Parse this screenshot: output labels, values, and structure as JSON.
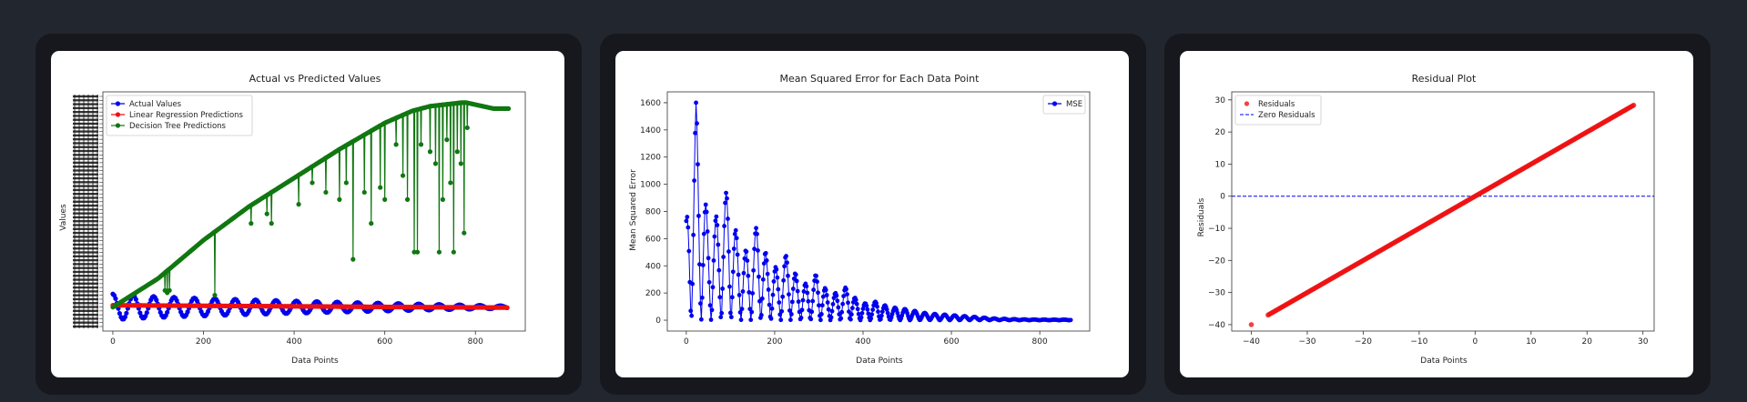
{
  "colors": {
    "page_bg": "#22262e",
    "card_bg": "#16181d",
    "plot_bg": "#ffffff",
    "blue": "#0000ee",
    "red": "#ee1111",
    "green": "#117711"
  },
  "chart_data": [
    {
      "type": "line",
      "title": "Actual vs Predicted Values",
      "xlabel": "Data Points",
      "ylabel": "Values",
      "xlim": [
        -22,
        910
      ],
      "ylim": [
        0,
        1
      ],
      "x_ticks": [
        0,
        200,
        400,
        600,
        800
      ],
      "grid": false,
      "legend_position": "top-left",
      "series": [
        {
          "name": "Actual Values",
          "color": "#0000ee",
          "marker": "o",
          "x_max": 870,
          "model": "damped_sine",
          "base": 0.1,
          "amplitude": 0.055,
          "period": 45,
          "decay_to": 0.1
        },
        {
          "name": "Linear Regression Predictions",
          "color": "#ee1111",
          "marker": "o",
          "x_max": 870,
          "model": "flat",
          "y_start": 0.108,
          "y_end": 0.098
        },
        {
          "name": "Decision Tree Predictions",
          "color": "#117711",
          "marker": "o",
          "model": "ramp",
          "trend": [
            {
              "x": 0,
              "y": 0.1
            },
            {
              "x": 100,
              "y": 0.22
            },
            {
              "x": 200,
              "y": 0.38
            },
            {
              "x": 300,
              "y": 0.52
            },
            {
              "x": 400,
              "y": 0.64
            },
            {
              "x": 500,
              "y": 0.76
            },
            {
              "x": 600,
              "y": 0.87
            },
            {
              "x": 660,
              "y": 0.92
            },
            {
              "x": 700,
              "y": 0.94
            },
            {
              "x": 770,
              "y": 0.955
            },
            {
              "x": 780,
              "y": 0.955
            },
            {
              "x": 840,
              "y": 0.93
            },
            {
              "x": 875,
              "y": 0.93
            }
          ],
          "drops": [
            {
              "x": 115,
              "y": 0.17
            },
            {
              "x": 120,
              "y": 0.16
            },
            {
              "x": 125,
              "y": 0.17
            },
            {
              "x": 225,
              "y": 0.15
            },
            {
              "x": 305,
              "y": 0.45
            },
            {
              "x": 340,
              "y": 0.49
            },
            {
              "x": 350,
              "y": 0.45
            },
            {
              "x": 410,
              "y": 0.53
            },
            {
              "x": 440,
              "y": 0.62
            },
            {
              "x": 470,
              "y": 0.58
            },
            {
              "x": 500,
              "y": 0.55
            },
            {
              "x": 515,
              "y": 0.62
            },
            {
              "x": 530,
              "y": 0.3
            },
            {
              "x": 555,
              "y": 0.58
            },
            {
              "x": 570,
              "y": 0.45
            },
            {
              "x": 590,
              "y": 0.6
            },
            {
              "x": 600,
              "y": 0.55
            },
            {
              "x": 625,
              "y": 0.78
            },
            {
              "x": 640,
              "y": 0.65
            },
            {
              "x": 650,
              "y": 0.55
            },
            {
              "x": 665,
              "y": 0.33
            },
            {
              "x": 672,
              "y": 0.33
            },
            {
              "x": 680,
              "y": 0.78
            },
            {
              "x": 700,
              "y": 0.75
            },
            {
              "x": 712,
              "y": 0.7
            },
            {
              "x": 720,
              "y": 0.33
            },
            {
              "x": 728,
              "y": 0.55
            },
            {
              "x": 737,
              "y": 0.8
            },
            {
              "x": 745,
              "y": 0.62
            },
            {
              "x": 752,
              "y": 0.33
            },
            {
              "x": 760,
              "y": 0.75
            },
            {
              "x": 768,
              "y": 0.7
            },
            {
              "x": 775,
              "y": 0.41
            },
            {
              "x": 782,
              "y": 0.85
            }
          ]
        }
      ]
    },
    {
      "type": "line",
      "title": "Mean Squared Error for Each Data Point",
      "xlabel": "Data Points",
      "ylabel": "Mean Squared Error",
      "xlim": [
        -43,
        913
      ],
      "ylim": [
        -80,
        1680
      ],
      "x_ticks": [
        0,
        200,
        400,
        600,
        800
      ],
      "y_ticks": [
        0,
        200,
        400,
        600,
        800,
        1000,
        1200,
        1400,
        1600
      ],
      "grid": false,
      "legend_position": "top-right",
      "series": [
        {
          "name": "MSE",
          "color": "#0000ee",
          "marker": "o",
          "x_max": 870,
          "period": 22.5,
          "peaks": [
            {
              "x": 0,
              "y": 730
            },
            {
              "x": 22,
              "y": 1600
            },
            {
              "x": 28,
              "y": 1300
            },
            {
              "x": 50,
              "y": 700
            },
            {
              "x": 72,
              "y": 780
            },
            {
              "x": 95,
              "y": 980
            },
            {
              "x": 117,
              "y": 570
            },
            {
              "x": 140,
              "y": 500
            },
            {
              "x": 162,
              "y": 720
            },
            {
              "x": 185,
              "y": 430
            },
            {
              "x": 207,
              "y": 380
            },
            {
              "x": 230,
              "y": 500
            },
            {
              "x": 252,
              "y": 300
            },
            {
              "x": 275,
              "y": 260
            },
            {
              "x": 297,
              "y": 350
            },
            {
              "x": 320,
              "y": 200
            },
            {
              "x": 342,
              "y": 200
            },
            {
              "x": 365,
              "y": 250
            },
            {
              "x": 387,
              "y": 140
            },
            {
              "x": 410,
              "y": 120
            },
            {
              "x": 432,
              "y": 140
            },
            {
              "x": 455,
              "y": 100
            },
            {
              "x": 500,
              "y": 80
            },
            {
              "x": 545,
              "y": 50
            },
            {
              "x": 590,
              "y": 40
            },
            {
              "x": 650,
              "y": 25
            },
            {
              "x": 700,
              "y": 12
            },
            {
              "x": 760,
              "y": 6
            },
            {
              "x": 820,
              "y": 4
            },
            {
              "x": 870,
              "y": 4
            }
          ]
        }
      ]
    },
    {
      "type": "scatter",
      "title": "Residual Plot",
      "xlabel": "Data Points",
      "ylabel": "Residuals",
      "xlim": [
        -43.5,
        32
      ],
      "ylim": [
        -42,
        32.5
      ],
      "x_ticks": [
        -40,
        -30,
        -20,
        -10,
        0,
        10,
        20,
        30
      ],
      "y_ticks": [
        -40,
        -30,
        -20,
        -10,
        0,
        10,
        20,
        30
      ],
      "grid": false,
      "legend_position": "top-left",
      "series": [
        {
          "name": "Residuals",
          "color": "#ee1111",
          "marker": "o",
          "relation": "y = x",
          "x_start": -37,
          "x_end": 28.5,
          "outlier": {
            "x": -40,
            "y": -40
          }
        },
        {
          "name": "Zero Residuals",
          "color": "#0000ee",
          "style": "dashed",
          "y": 0
        }
      ]
    }
  ]
}
